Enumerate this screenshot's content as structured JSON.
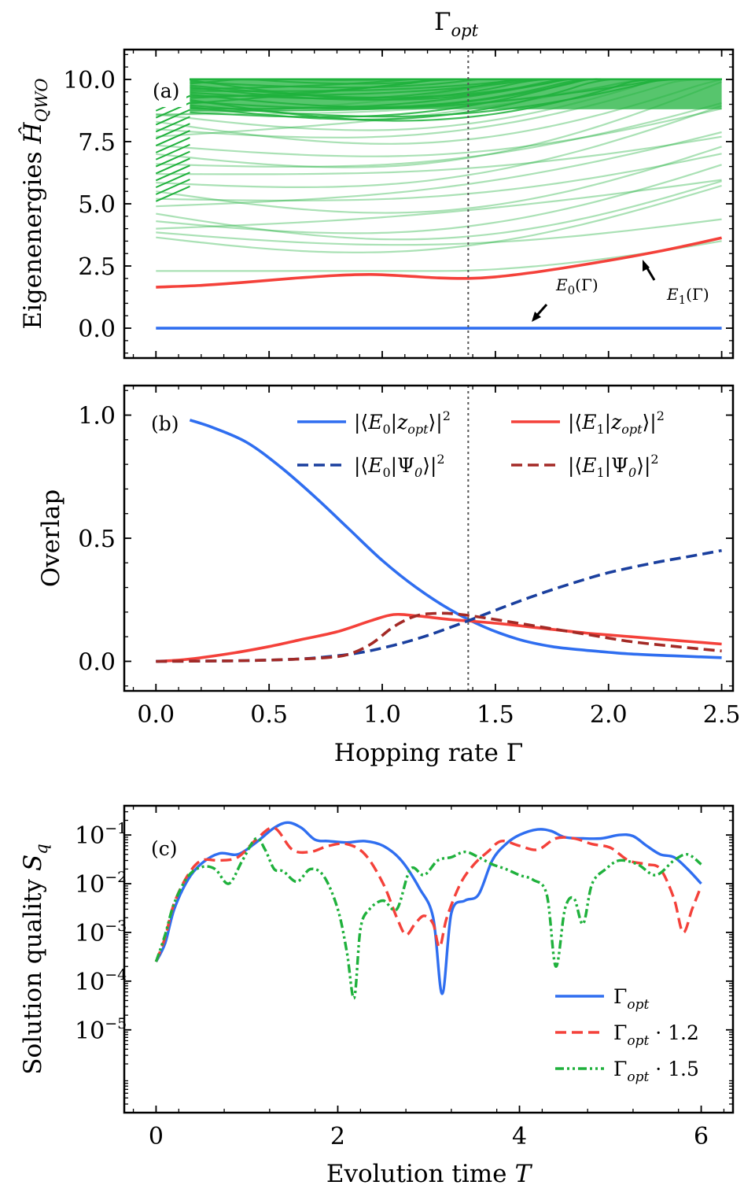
{
  "figure": {
    "top_label": "Γ",
    "top_label_sub": "opt",
    "vline_gamma": 1.38,
    "colors": {
      "blue": "#2f6ef0",
      "red": "#f4413a",
      "green": "#1fb13c",
      "darkblue": "#1a3f9e",
      "darkred": "#a32a26",
      "grid": "#999999"
    }
  },
  "chart_data": [
    {
      "id": "a",
      "type": "line",
      "panel_label": "(a)",
      "ylabel": "Eigenenergies",
      "ylabel_symbol": "Ĥ",
      "ylabel_symbol_sub": "QWO",
      "xlim": [
        -0.14,
        2.55
      ],
      "ylim": [
        -1.2,
        11.2
      ],
      "yticks": [
        "0.0",
        "2.5",
        "5.0",
        "7.5",
        "10.0"
      ],
      "ytick_values": [
        0,
        2.5,
        5,
        7.5,
        10
      ],
      "xticks": [
        0,
        0.5,
        1.0,
        1.5,
        2.0,
        2.5
      ],
      "series": [
        {
          "name": "E0(Γ)",
          "label_main": "E",
          "label_sub": "0",
          "label_arg": "(Γ)",
          "color": "#2f6ef0",
          "x": [
            0,
            2.5
          ],
          "y": [
            0,
            0
          ]
        },
        {
          "name": "E1(Γ)",
          "label_main": "E",
          "label_sub": "1",
          "label_arg": "(Γ)",
          "color": "#f4413a",
          "x": [
            0,
            0.2,
            0.4,
            0.6,
            0.8,
            0.95,
            1.1,
            1.25,
            1.38,
            1.5,
            1.65,
            1.8,
            2.0,
            2.2,
            2.35,
            2.5
          ],
          "y": [
            1.65,
            1.72,
            1.85,
            2.0,
            2.12,
            2.16,
            2.1,
            2.02,
            2.0,
            2.06,
            2.22,
            2.42,
            2.72,
            3.05,
            3.33,
            3.63
          ]
        },
        {
          "name": "higher eigenenergies",
          "color": "#1fb13c",
          "note": "dense band of ~95 levels from ~3.7 up to the 10.0 cutoff",
          "level_start": [
            2.3,
            3.65,
            3.85,
            4.0,
            4.3,
            4.6,
            4.9,
            5.2,
            5.5,
            5.85,
            6.2,
            6.6,
            7.0,
            7.35,
            7.7,
            8.0,
            8.3,
            8.55,
            8.6
          ],
          "level_end_range": [
            4.5,
            10.0
          ]
        }
      ],
      "annotations": [
        "E0(Γ)",
        "E1(Γ)"
      ]
    },
    {
      "id": "b",
      "type": "line",
      "panel_label": "(b)",
      "ylabel": "Overlap",
      "xlabel": "Hopping rate Γ",
      "xlim": [
        -0.14,
        2.55
      ],
      "ylim": [
        -0.12,
        1.12
      ],
      "xticks": [
        "0.0",
        "0.5",
        "1.0",
        "1.5",
        "2.0",
        "2.5"
      ],
      "xtick_values": [
        0,
        0.5,
        1.0,
        1.5,
        2.0,
        2.5
      ],
      "yticks": [
        "0.0",
        "0.5",
        "1.0"
      ],
      "ytick_values": [
        0,
        0.5,
        1.0
      ],
      "series": [
        {
          "name": "|⟨E0|z_opt⟩|²",
          "legend_main": "E",
          "legend_sub": "0",
          "legend_state": "z",
          "legend_state_sub": "opt",
          "color": "#2f6ef0",
          "style": "solid",
          "x": [
            0.15,
            0.25,
            0.4,
            0.55,
            0.7,
            0.85,
            1.0,
            1.15,
            1.3,
            1.45,
            1.6,
            1.75,
            1.9,
            2.1,
            2.3,
            2.5
          ],
          "y": [
            0.98,
            0.95,
            0.89,
            0.79,
            0.67,
            0.54,
            0.41,
            0.3,
            0.21,
            0.14,
            0.09,
            0.06,
            0.045,
            0.03,
            0.022,
            0.015
          ]
        },
        {
          "name": "|⟨E1|z_opt⟩|²",
          "legend_main": "E",
          "legend_sub": "1",
          "legend_state": "z",
          "legend_state_sub": "opt",
          "color": "#f4413a",
          "style": "solid",
          "x": [
            0,
            0.1,
            0.2,
            0.35,
            0.5,
            0.65,
            0.8,
            0.95,
            1.05,
            1.15,
            1.3,
            1.5,
            1.7,
            1.9,
            2.1,
            2.3,
            2.5
          ],
          "y": [
            0,
            0.005,
            0.015,
            0.035,
            0.06,
            0.09,
            0.12,
            0.165,
            0.19,
            0.185,
            0.17,
            0.155,
            0.135,
            0.115,
            0.1,
            0.085,
            0.07
          ]
        },
        {
          "name": "|⟨E0|Ψ0⟩|²",
          "legend_main": "E",
          "legend_sub": "0",
          "legend_state": "Ψ",
          "legend_state_sub": "0",
          "color": "#1a3f9e",
          "style": "dashed",
          "x": [
            0,
            0.2,
            0.4,
            0.6,
            0.75,
            0.9,
            1.05,
            1.2,
            1.38,
            1.55,
            1.7,
            1.85,
            2.0,
            2.2,
            2.35,
            2.5
          ],
          "y": [
            0,
            0.001,
            0.003,
            0.008,
            0.018,
            0.035,
            0.065,
            0.105,
            0.165,
            0.225,
            0.275,
            0.32,
            0.36,
            0.4,
            0.425,
            0.45
          ]
        },
        {
          "name": "|⟨E1|Ψ0⟩|²",
          "legend_main": "E",
          "legend_sub": "1",
          "legend_state": "Ψ",
          "legend_state_sub": "0",
          "color": "#a32a26",
          "style": "dashed",
          "x": [
            0,
            0.2,
            0.4,
            0.6,
            0.75,
            0.85,
            0.95,
            1.05,
            1.15,
            1.25,
            1.35,
            1.5,
            1.7,
            1.9,
            2.1,
            2.3,
            2.5
          ],
          "y": [
            0,
            0.001,
            0.003,
            0.008,
            0.015,
            0.028,
            0.07,
            0.14,
            0.185,
            0.195,
            0.19,
            0.17,
            0.14,
            0.11,
            0.08,
            0.06,
            0.042
          ]
        }
      ]
    },
    {
      "id": "c",
      "type": "line",
      "panel_label": "(c)",
      "ylabel": "Solution quality",
      "ylabel_symbol": "S",
      "ylabel_symbol_sub": "q",
      "xlabel": "Evolution time",
      "xlabel_symbol": "T",
      "yscale": "log",
      "xlim": [
        -0.35,
        6.35
      ],
      "ylim_log10": [
        -6.7,
        -0.4
      ],
      "xticks": [
        "0",
        "2",
        "4",
        "6"
      ],
      "xtick_values": [
        0,
        2,
        4,
        6
      ],
      "ytick_values_log10": [
        -1,
        -2,
        -3,
        -4,
        -5
      ],
      "ytick_exponents": [
        "−1",
        "−2",
        "−3",
        "−4",
        "−5"
      ],
      "ytick_base": "10",
      "series": [
        {
          "name": "Γ_opt",
          "legend_main": "Γ",
          "legend_sub": "opt",
          "legend_suffix": "",
          "color": "#2f6ef0",
          "style": "solid",
          "x": [
            0,
            0.1,
            0.2,
            0.35,
            0.5,
            0.7,
            0.9,
            1.1,
            1.3,
            1.45,
            1.6,
            1.75,
            1.9,
            2.1,
            2.3,
            2.5,
            2.7,
            2.9,
            3.05,
            3.15,
            3.25,
            3.4,
            3.55,
            3.7,
            3.85,
            4.0,
            4.2,
            4.35,
            4.5,
            4.7,
            4.9,
            5.1,
            5.25,
            5.4,
            5.55,
            5.7,
            5.85,
            6.0
          ],
          "y": [
            0.00025,
            0.0006,
            0.003,
            0.012,
            0.026,
            0.042,
            0.04,
            0.07,
            0.14,
            0.18,
            0.14,
            0.08,
            0.075,
            0.07,
            0.075,
            0.06,
            0.03,
            0.008,
            0.002,
            5.5e-05,
            0.0025,
            0.0045,
            0.006,
            0.03,
            0.065,
            0.1,
            0.13,
            0.12,
            0.09,
            0.085,
            0.085,
            0.1,
            0.095,
            0.06,
            0.04,
            0.035,
            0.02,
            0.01
          ]
        },
        {
          "name": "Γ_opt · 1.2",
          "legend_main": "Γ",
          "legend_sub": "opt",
          "legend_suffix": " · 1.2",
          "color": "#f4413a",
          "style": "dashed",
          "x": [
            0,
            0.1,
            0.2,
            0.35,
            0.5,
            0.7,
            0.9,
            1.1,
            1.3,
            1.5,
            1.7,
            1.9,
            2.1,
            2.3,
            2.5,
            2.65,
            2.75,
            2.85,
            2.95,
            3.05,
            3.12,
            3.2,
            3.35,
            3.5,
            3.65,
            3.8,
            4.0,
            4.2,
            4.4,
            4.6,
            4.8,
            5.0,
            5.2,
            5.4,
            5.55,
            5.7,
            5.8,
            5.9,
            6.0
          ],
          "y": [
            0.00025,
            0.0008,
            0.004,
            0.015,
            0.03,
            0.03,
            0.035,
            0.08,
            0.14,
            0.05,
            0.045,
            0.06,
            0.065,
            0.04,
            0.01,
            0.002,
            0.0009,
            0.0015,
            0.0022,
            0.0015,
            0.0005,
            0.002,
            0.01,
            0.025,
            0.045,
            0.075,
            0.06,
            0.05,
            0.085,
            0.085,
            0.065,
            0.055,
            0.03,
            0.025,
            0.02,
            0.005,
            0.001,
            0.003,
            0.009
          ]
        },
        {
          "name": "Γ_opt · 1.5",
          "legend_main": "Γ",
          "legend_sub": "opt",
          "legend_suffix": " · 1.5",
          "color": "#1fb13c",
          "style": "dashdotdot",
          "x": [
            0,
            0.1,
            0.2,
            0.35,
            0.5,
            0.65,
            0.8,
            0.95,
            1.1,
            1.2,
            1.3,
            1.4,
            1.55,
            1.7,
            1.85,
            2.0,
            2.1,
            2.18,
            2.25,
            2.35,
            2.5,
            2.65,
            2.8,
            2.95,
            3.1,
            3.25,
            3.4,
            3.55,
            3.7,
            3.85,
            4.0,
            4.15,
            4.3,
            4.4,
            4.5,
            4.6,
            4.7,
            4.8,
            4.95,
            5.1,
            5.3,
            5.5,
            5.7,
            5.85,
            6.0
          ],
          "y": [
            0.00025,
            0.0009,
            0.004,
            0.014,
            0.022,
            0.02,
            0.01,
            0.03,
            0.085,
            0.05,
            0.02,
            0.018,
            0.011,
            0.02,
            0.014,
            0.003,
            0.0004,
            4.5e-05,
            0.0012,
            0.003,
            0.0045,
            0.003,
            0.02,
            0.015,
            0.03,
            0.035,
            0.045,
            0.035,
            0.025,
            0.02,
            0.015,
            0.012,
            0.006,
            0.0002,
            0.003,
            0.005,
            0.0015,
            0.01,
            0.02,
            0.03,
            0.025,
            0.015,
            0.03,
            0.04,
            0.025
          ]
        }
      ]
    }
  ]
}
